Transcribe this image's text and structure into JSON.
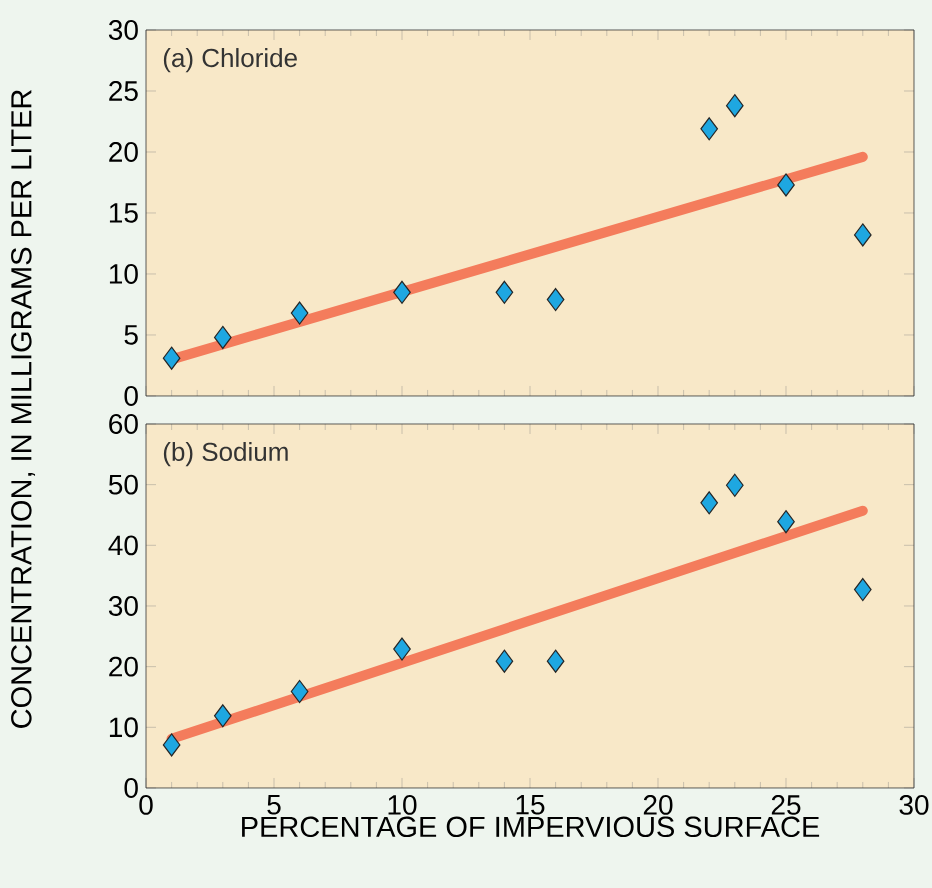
{
  "chart_data": [
    {
      "type": "scatter",
      "title": "(a) Chloride",
      "ylabel": "CONCENTRATION, IN MILLIGRAMS PER LITER",
      "xlim": [
        0,
        30
      ],
      "xticks": [
        0,
        5,
        10,
        15,
        20,
        25,
        30
      ],
      "ylim": [
        0,
        30
      ],
      "yticks": [
        0,
        5,
        10,
        15,
        20,
        25,
        30
      ],
      "tick_labels": "y",
      "series": [
        {
          "type": "scatter",
          "marker": "diamond",
          "color": "#1ea7e1",
          "x": [
            1,
            3,
            6,
            10,
            14,
            16,
            22,
            23,
            25,
            28
          ],
          "values": [
            3.1,
            4.8,
            6.8,
            8.5,
            8.5,
            7.9,
            21.9,
            23.8,
            17.3,
            13.2
          ]
        },
        {
          "type": "line",
          "marker": "none",
          "color": "#f47c5c",
          "x": [
            1,
            28
          ],
          "values": [
            3.0,
            19.6
          ]
        }
      ]
    },
    {
      "type": "scatter",
      "title": "(b) Sodium",
      "xlabel": "PERCENTAGE OF IMPERVIOUS SURFACE",
      "xlim": [
        0,
        30
      ],
      "xticks": [
        0,
        5,
        10,
        15,
        20,
        25,
        30
      ],
      "ylim": [
        0,
        60
      ],
      "yticks": [
        0,
        10,
        20,
        30,
        40,
        50,
        60
      ],
      "series": [
        {
          "type": "scatter",
          "marker": "diamond",
          "color": "#1ea7e1",
          "x": [
            1,
            3,
            6,
            10,
            14,
            16,
            22,
            23,
            25,
            28
          ],
          "values": [
            7.1,
            11.9,
            15.9,
            22.9,
            20.9,
            20.9,
            47.0,
            49.9,
            43.9,
            32.7
          ]
        },
        {
          "type": "line",
          "marker": "none",
          "color": "#f47c5c",
          "x": [
            1,
            28
          ],
          "values": [
            8.1,
            45.7
          ]
        }
      ]
    }
  ]
}
